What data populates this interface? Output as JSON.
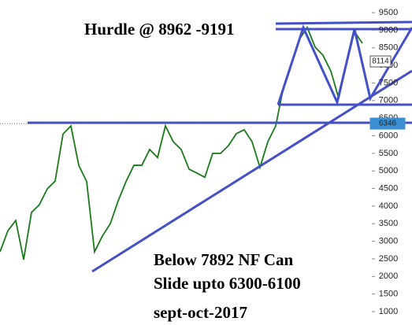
{
  "chart_data": {
    "type": "line",
    "title": "Hurdle @ 8962 -9191",
    "annotations": [
      "Below 7892 NF Can",
      "Slide upto 6300-6100",
      "sept-oct-2017"
    ],
    "values": [
      2700,
      3300,
      3590,
      2480,
      3820,
      4040,
      4490,
      4710,
      6050,
      6280,
      5160,
      4700,
      2700,
      3150,
      3500,
      4150,
      4700,
      5160,
      5160,
      5610,
      5380,
      6280,
      5830,
      5610,
      5050,
      4940,
      4820,
      5500,
      5500,
      5720,
      6060,
      6170,
      5830,
      5100,
      5830,
      6280,
      7400,
      8070,
      8740,
      9080,
      8520,
      8290,
      7840,
      7060,
      8070,
      8960,
      8630
    ],
    "color": "#1a7a1a",
    "ylim": [
      620,
      9860
    ],
    "yticks": [
      1000,
      1500,
      2000,
      2500,
      3000,
      3500,
      4000,
      4500,
      5000,
      5500,
      6000,
      6500,
      7000,
      7500,
      8000,
      8500,
      9000,
      9500
    ],
    "markers": [
      {
        "value": 8114,
        "label": "8114"
      },
      {
        "value": 6346,
        "label": "6346"
      }
    ]
  }
}
